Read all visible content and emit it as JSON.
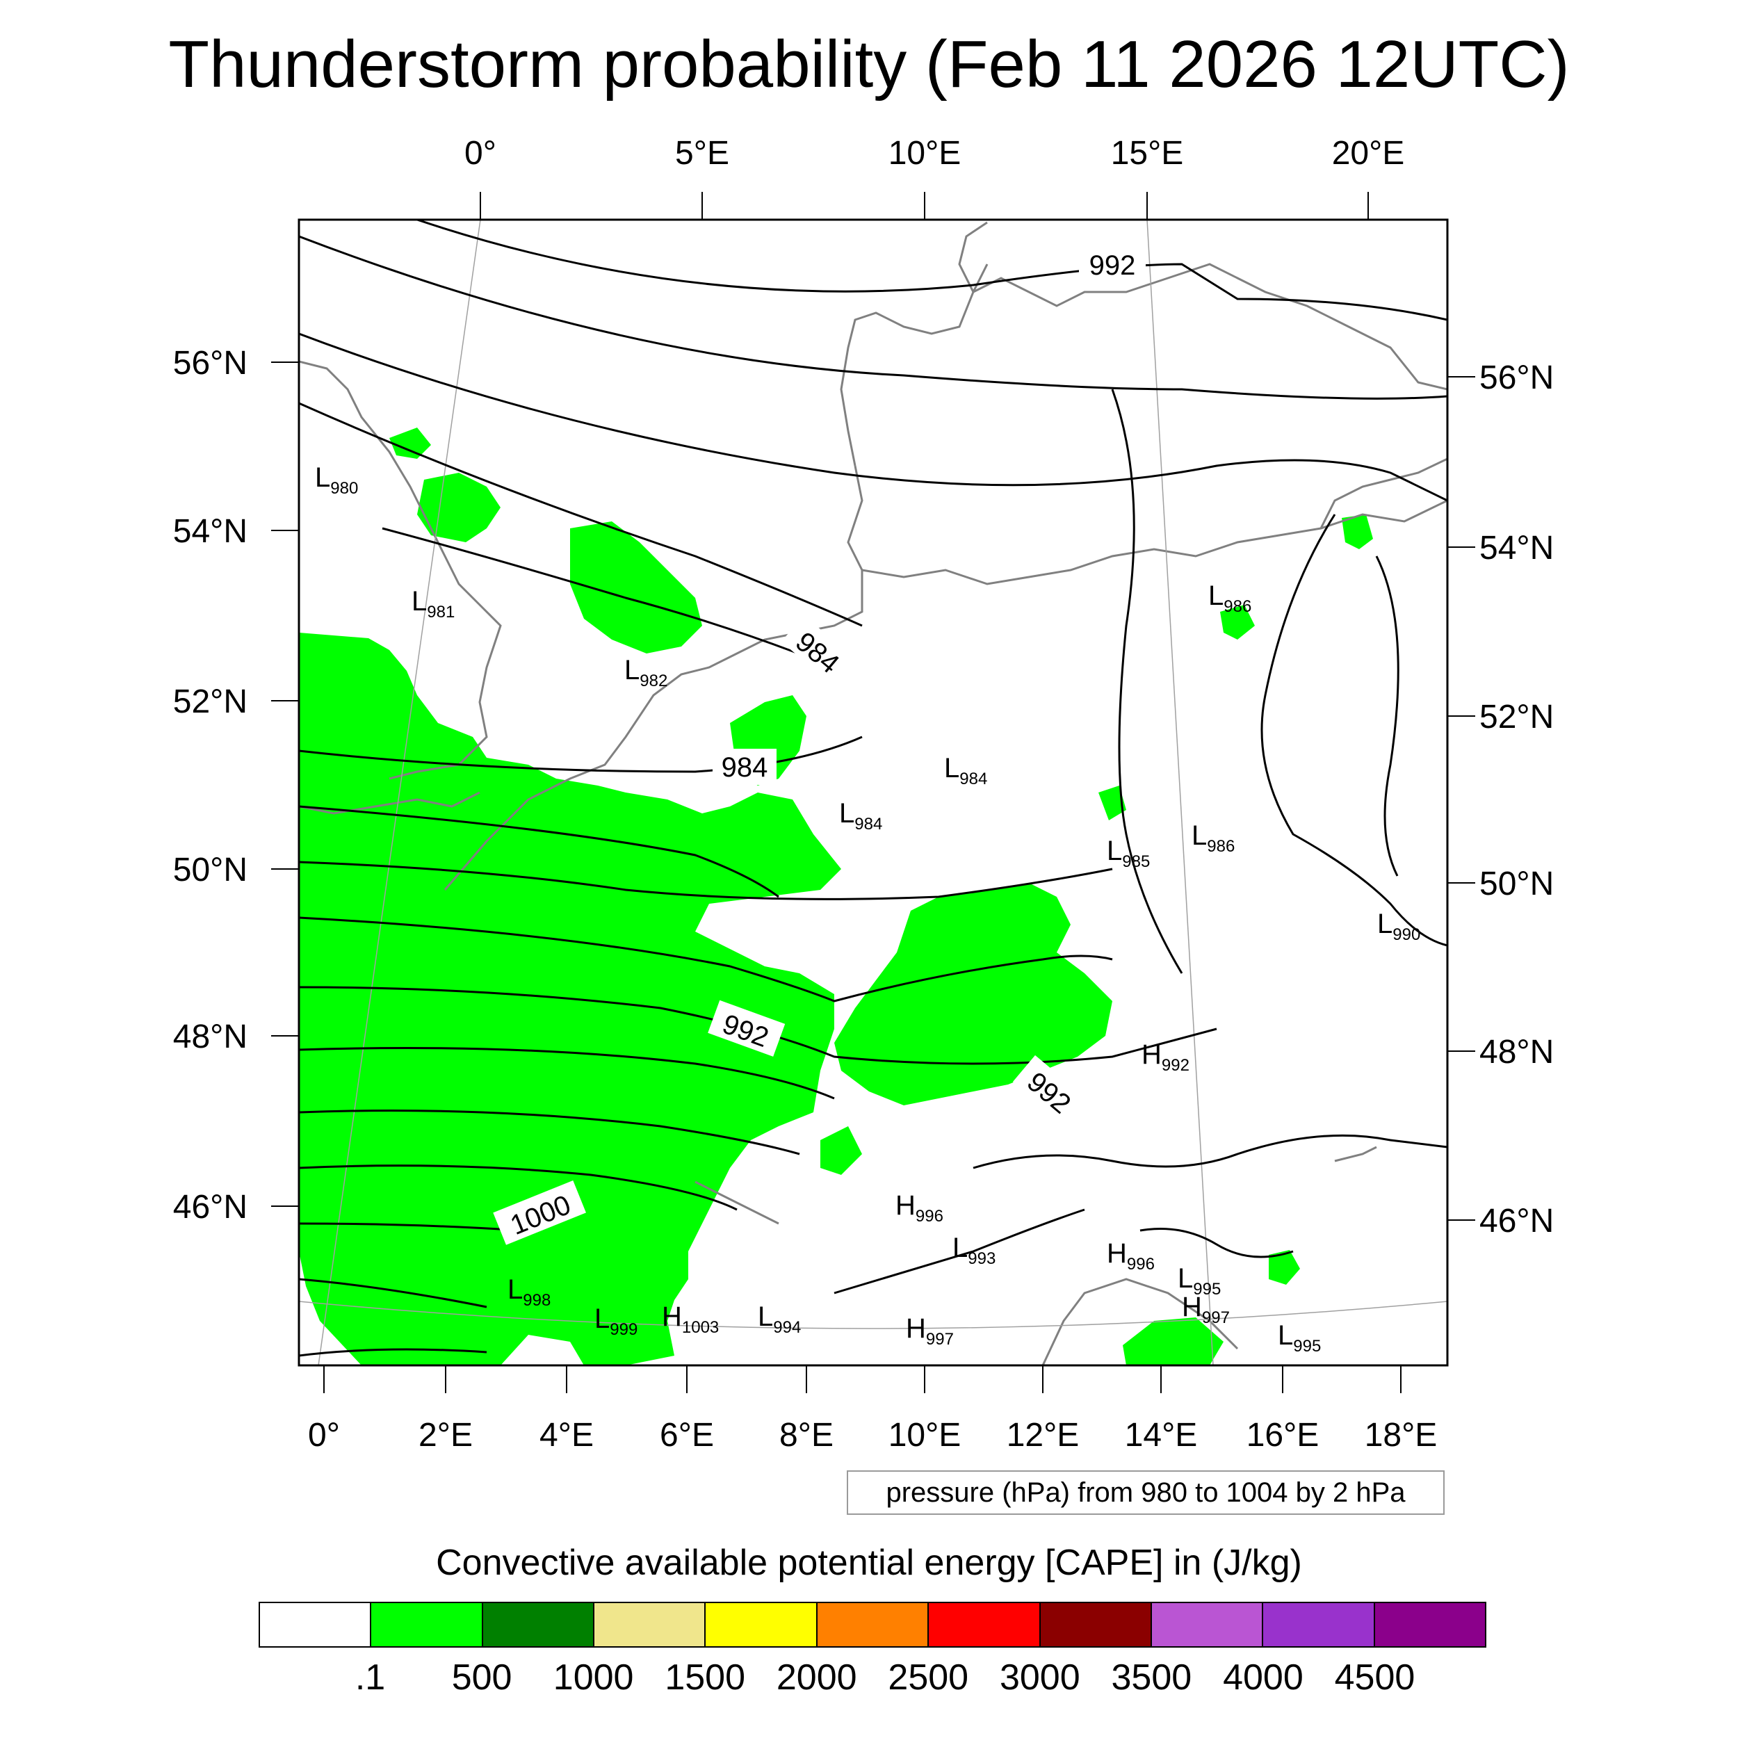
{
  "title": "Thunderstorm probability (Feb 11 2026 12UTC)",
  "axes": {
    "top_lon_labels": [
      "0°",
      "5°E",
      "10°E",
      "15°E",
      "20°E"
    ],
    "bottom_lon_labels": [
      "0°",
      "2°E",
      "4°E",
      "6°E",
      "8°E",
      "10°E",
      "12°E",
      "14°E",
      "16°E",
      "18°E"
    ],
    "left_lat_labels": [
      "56°N",
      "54°N",
      "52°N",
      "50°N",
      "48°N",
      "46°N"
    ],
    "right_lat_labels": [
      "56°N",
      "54°N",
      "52°N",
      "50°N",
      "48°N",
      "46°N"
    ]
  },
  "isobar_labels": [
    "992",
    "984",
    "984",
    "992",
    "992",
    "1000"
  ],
  "pressure_centers": [
    {
      "type": "L",
      "value": "980"
    },
    {
      "type": "L",
      "value": "981"
    },
    {
      "type": "L",
      "value": "982"
    },
    {
      "type": "L",
      "value": "986"
    },
    {
      "type": "L",
      "value": "984"
    },
    {
      "type": "L",
      "value": "984"
    },
    {
      "type": "L",
      "value": "985"
    },
    {
      "type": "L",
      "value": "986"
    },
    {
      "type": "L",
      "value": "990"
    },
    {
      "type": "H",
      "value": "992"
    },
    {
      "type": "H",
      "value": "996"
    },
    {
      "type": "L",
      "value": "993"
    },
    {
      "type": "H",
      "value": "996"
    },
    {
      "type": "L",
      "value": "995"
    },
    {
      "type": "H",
      "value": "997"
    },
    {
      "type": "L",
      "value": "995"
    },
    {
      "type": "L",
      "value": "998"
    },
    {
      "type": "L",
      "value": "999"
    },
    {
      "type": "H",
      "value": "1003"
    },
    {
      "type": "L",
      "value": "994"
    },
    {
      "type": "H",
      "value": "997"
    }
  ],
  "info_text": "pressure (hPa) from 980 to 1004 by 2 hPa",
  "colorbar": {
    "title": "Convective available potential energy [CAPE] in (J/kg)",
    "colors": [
      "#ffffff",
      "#00ff00",
      "#008000",
      "#f0e68c",
      "#ffff00",
      "#ff8000",
      "#ff0000",
      "#8b0000",
      "#ba55d3",
      "#9932cc",
      "#8b008b"
    ],
    "labels": [
      ".1",
      "500",
      "1000",
      "1500",
      "2000",
      "2500",
      "3000",
      "3500",
      "4000",
      "4500"
    ]
  }
}
